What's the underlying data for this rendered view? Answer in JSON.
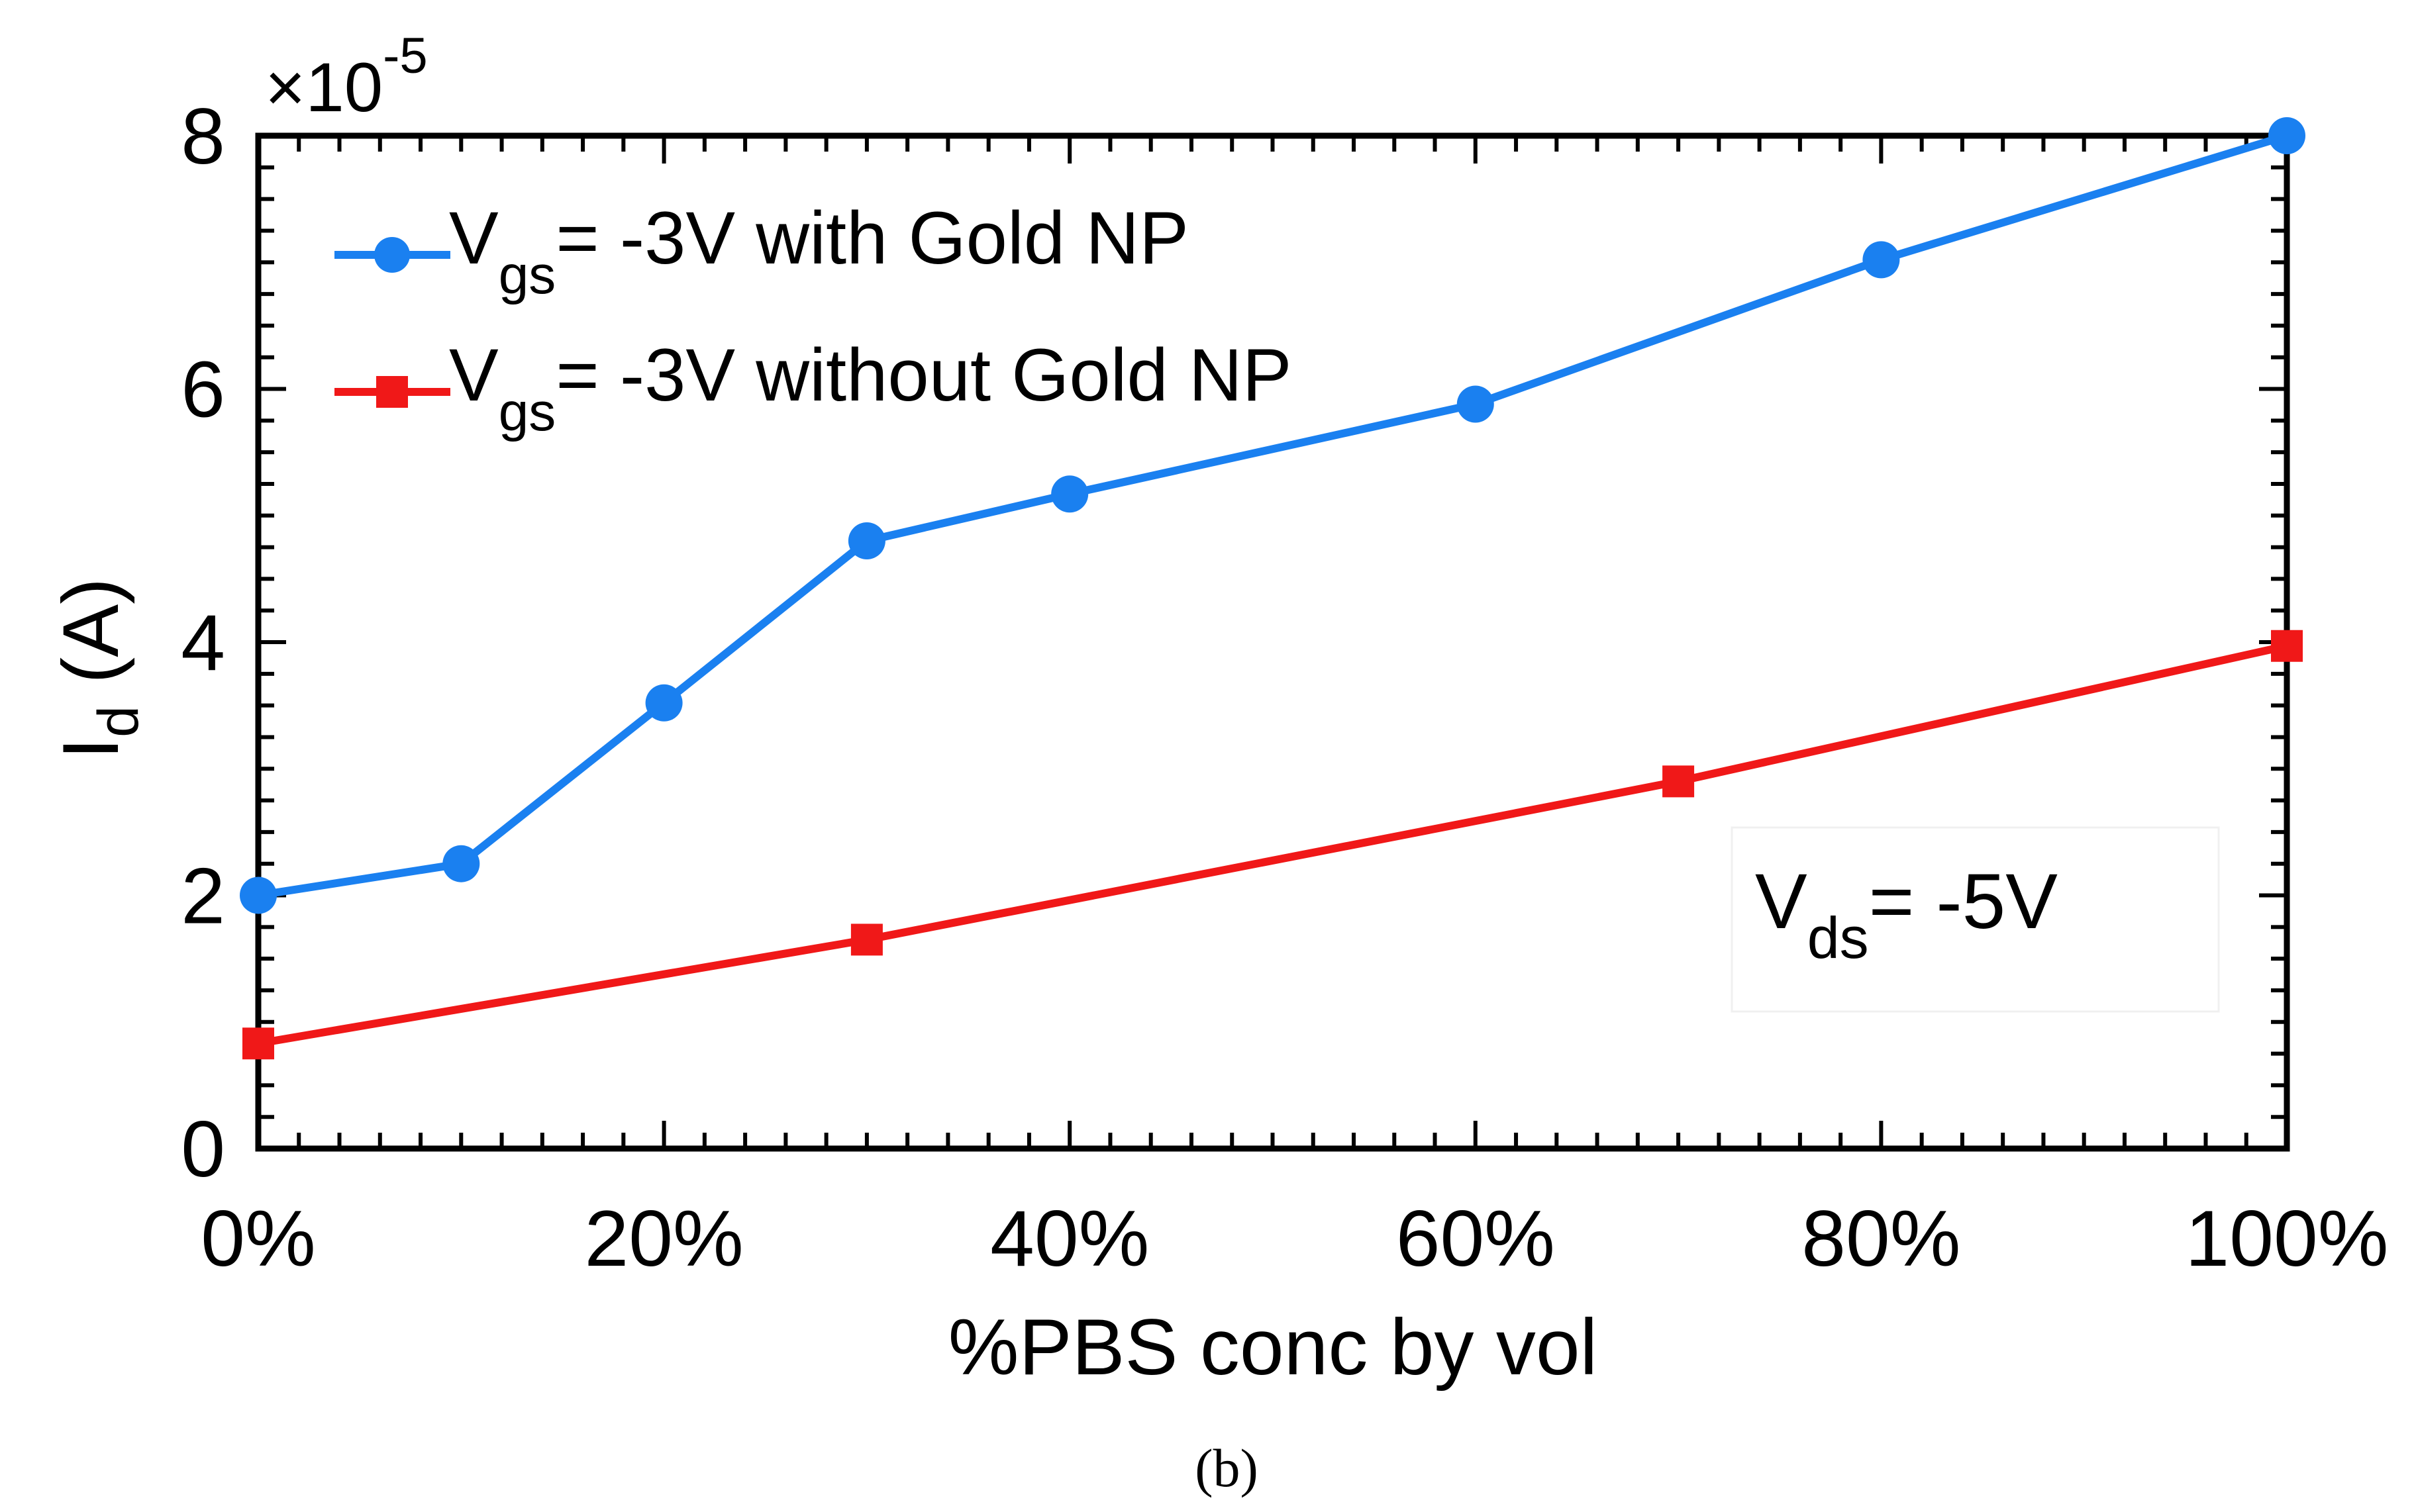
{
  "chart_data": {
    "type": "line",
    "title": "",
    "xlabel": "%PBS conc by vol",
    "ylabel_main": "I",
    "ylabel_sub": "d",
    "ylabel_unit": " (A)",
    "xlim": [
      0,
      100
    ],
    "ylim": [
      0,
      8
    ],
    "y_multiplier": {
      "base": "×10",
      "exponent": "-5"
    },
    "x_ticks": [
      0,
      20,
      40,
      60,
      80,
      100
    ],
    "x_tick_labels": [
      "0%",
      "20%",
      "40%",
      "60%",
      "80%",
      "100%"
    ],
    "y_ticks": [
      0,
      2,
      4,
      6,
      8
    ],
    "y_tick_labels": [
      "0",
      "2",
      "4",
      "6",
      "8"
    ],
    "legend_position": "top-left",
    "series": [
      {
        "name": "Vgs= -3V with Gold NP",
        "label_main": "V",
        "label_sub": "gs",
        "label_rest": "= -3V with Gold NP",
        "color": "#1a80f0",
        "marker": "circle",
        "x": [
          0,
          10,
          20,
          30,
          40,
          60,
          80,
          100
        ],
        "y": [
          2.0,
          2.25,
          3.52,
          4.8,
          5.17,
          5.88,
          7.02,
          8.0
        ]
      },
      {
        "name": "Vgs= -3V without Gold NP",
        "label_main": "V",
        "label_sub": "gs",
        "label_rest": "= -3V without Gold NP",
        "color": "#f01818",
        "marker": "square",
        "x": [
          0,
          30,
          70,
          100
        ],
        "y": [
          0.83,
          1.65,
          2.9,
          3.97
        ]
      }
    ],
    "annotation": {
      "main": "V",
      "sub": "ds",
      "rest": "= -5V"
    }
  },
  "caption": "(b)"
}
